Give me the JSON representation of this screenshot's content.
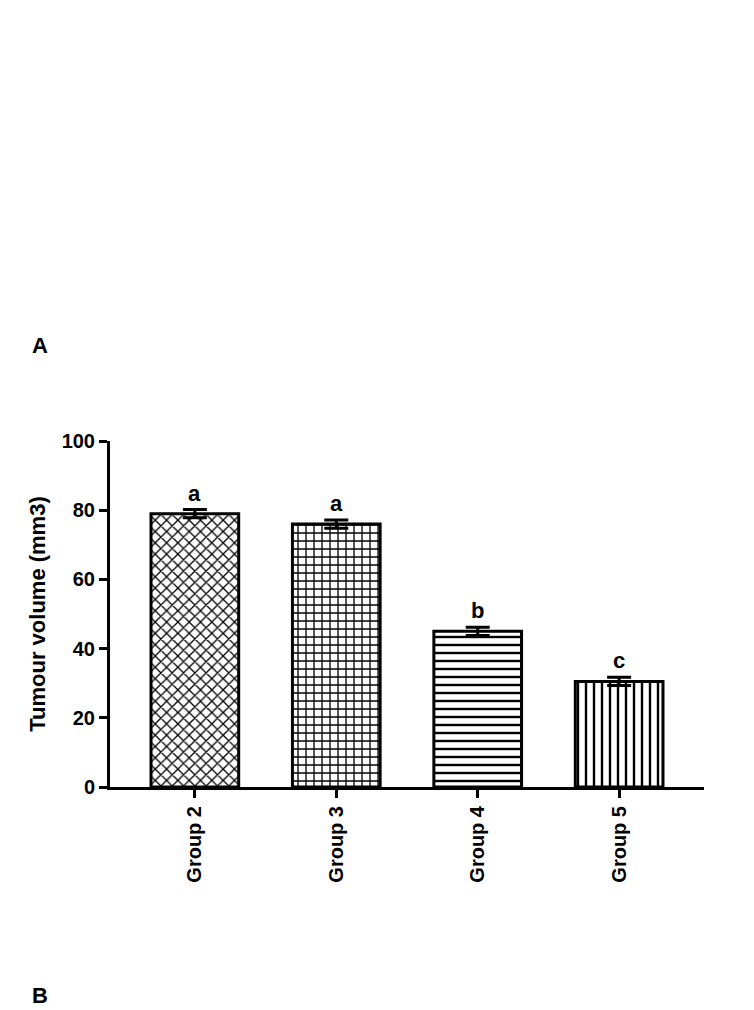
{
  "chart_data": {
    "type": "bar",
    "y_label": "Tumour volume (mm3)",
    "categories": [
      "Group 2",
      "Group 3",
      "Group 4",
      "Group 5"
    ],
    "values": [
      79,
      76,
      45,
      30.5
    ],
    "errors": [
      1.2,
      1.2,
      1.2,
      1.2
    ],
    "letters": [
      "a",
      "a",
      "b",
      "c"
    ],
    "panel_labels": [
      "A",
      "B"
    ],
    "color": "#000000",
    "ylim": [
      0,
      100
    ],
    "yticks": [
      0,
      20,
      40,
      60,
      80,
      100
    ],
    "grid": false
  }
}
